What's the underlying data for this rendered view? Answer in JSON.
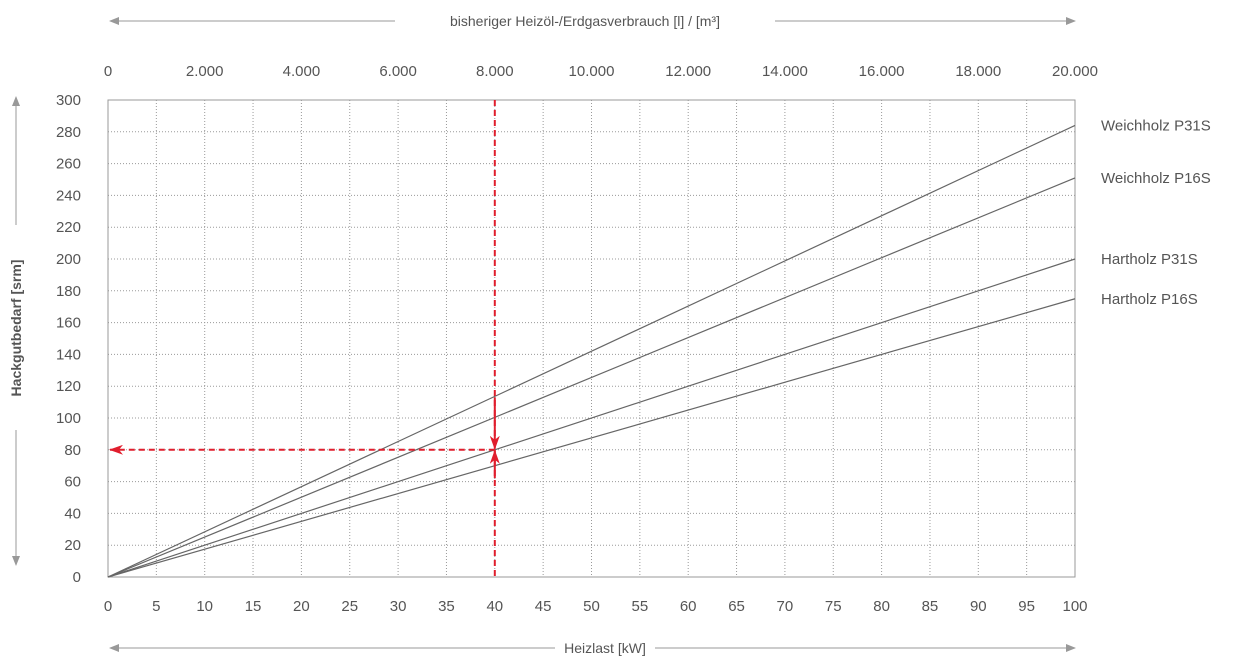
{
  "chart_data": {
    "type": "line",
    "xlabel": "Heizlast [kW]",
    "ylabel": "Hackgutbedarf [srm]",
    "x2label": "bisheriger Heizöl-/Erdgasverbrauch [l] / [m³]",
    "xlim": [
      0,
      100
    ],
    "ylim": [
      0,
      300
    ],
    "x2lim": [
      0,
      20000
    ],
    "xticks": [
      0,
      5,
      10,
      15,
      20,
      25,
      30,
      35,
      40,
      45,
      50,
      55,
      60,
      65,
      70,
      75,
      80,
      85,
      90,
      95,
      100
    ],
    "yticks": [
      0,
      20,
      40,
      60,
      80,
      100,
      120,
      140,
      160,
      180,
      200,
      220,
      240,
      260,
      280,
      300
    ],
    "x2ticks": [
      "0",
      "2.000",
      "4.000",
      "6.000",
      "8.000",
      "10.000",
      "12.000",
      "14.000",
      "16.000",
      "18.000",
      "20.000"
    ],
    "grid": true,
    "series": [
      {
        "name": "Weichholz P31S",
        "x": [
          0,
          100
        ],
        "y": [
          0,
          284
        ],
        "color": "#666666"
      },
      {
        "name": "Weichholz P16S",
        "x": [
          0,
          100
        ],
        "y": [
          0,
          251
        ],
        "color": "#666666"
      },
      {
        "name": "Hartholz P31S",
        "x": [
          0,
          100
        ],
        "y": [
          0,
          200
        ],
        "color": "#666666"
      },
      {
        "name": "Hartholz P16S",
        "x": [
          0,
          100
        ],
        "y": [
          0,
          175
        ],
        "color": "#666666"
      }
    ],
    "annotation": {
      "x": 40,
      "y": 80,
      "color": "#e01e2d",
      "style": "dashed",
      "description_points": {
        "upper": 113,
        "lower": 71
      }
    }
  }
}
